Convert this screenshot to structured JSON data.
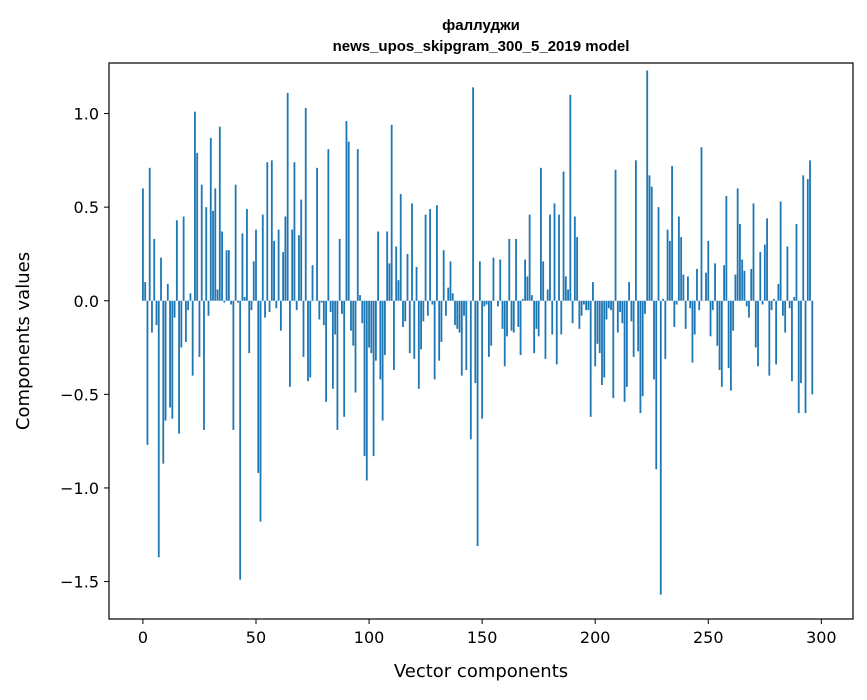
{
  "chart_data": {
    "type": "bar",
    "title": "фаллуджи",
    "subtitle": "news_upos_skipgram_300_5_2019 model",
    "xlabel": "Vector components",
    "ylabel": "Components values",
    "xlim": [
      -15,
      314
    ],
    "ylim": [
      -1.7,
      1.27
    ],
    "xticks": [
      0,
      50,
      100,
      150,
      200,
      250,
      300
    ],
    "xtick_labels": [
      "0",
      "50",
      "100",
      "150",
      "200",
      "250",
      "300"
    ],
    "yticks": [
      1.0,
      0.5,
      0.0,
      -0.5,
      -1.0,
      -1.5
    ],
    "ytick_labels": [
      "1.0",
      "0.5",
      "0.0",
      "−0.5",
      "−1.0",
      "−1.5"
    ],
    "grid": false,
    "bar_color": "#1f77b4",
    "values": [
      0.6,
      0.1,
      -0.77,
      0.71,
      -0.17,
      0.33,
      -0.13,
      -1.37,
      0.23,
      -0.87,
      -0.64,
      0.09,
      -0.57,
      -0.63,
      -0.09,
      0.43,
      -0.71,
      -0.25,
      0.45,
      -0.22,
      -0.05,
      0.04,
      -0.4,
      1.01,
      0.79,
      -0.3,
      0.62,
      -0.69,
      0.5,
      -0.08,
      0.87,
      0.48,
      0.6,
      0.06,
      0.93,
      0.37,
      -0.01,
      0.27,
      0.27,
      -0.02,
      -0.69,
      0.62,
      -0.01,
      -1.49,
      0.36,
      0.02,
      0.49,
      -0.28,
      -0.05,
      0.21,
      0.38,
      -0.92,
      -1.18,
      0.46,
      -0.09,
      0.74,
      -0.06,
      0.75,
      0.32,
      -0.04,
      0.38,
      -0.16,
      0.26,
      0.45,
      1.11,
      -0.46,
      0.38,
      0.74,
      -0.05,
      0.35,
      0.54,
      -0.3,
      1.03,
      -0.43,
      -0.41,
      0.19,
      0.0,
      0.71,
      -0.1,
      -0.01,
      -0.13,
      -0.54,
      0.81,
      -0.06,
      -0.47,
      -0.18,
      -0.69,
      0.33,
      -0.07,
      -0.62,
      0.96,
      0.85,
      -0.16,
      -0.24,
      -0.49,
      0.81,
      0.03,
      -0.12,
      -0.83,
      -0.96,
      -0.25,
      -0.28,
      -0.83,
      -0.32,
      0.37,
      -0.42,
      -0.64,
      -0.29,
      0.37,
      0.2,
      0.94,
      -0.37,
      0.29,
      0.11,
      0.57,
      -0.14,
      -0.11,
      0.25,
      -0.28,
      0.52,
      -0.31,
      0.18,
      -0.47,
      -0.26,
      -0.11,
      0.46,
      -0.08,
      0.49,
      -0.02,
      -0.42,
      0.51,
      -0.32,
      -0.22,
      0.27,
      -0.08,
      0.07,
      0.21,
      0.04,
      -0.13,
      -0.15,
      -0.17,
      -0.4,
      -0.08,
      -0.37,
      0.0,
      -0.74,
      1.14,
      -0.44,
      -1.31,
      0.21,
      -0.63,
      -0.03,
      -0.02,
      -0.3,
      -0.24,
      0.23,
      0.0,
      -0.03,
      0.22,
      -0.15,
      -0.35,
      -0.19,
      0.33,
      -0.16,
      -0.17,
      0.33,
      -0.14,
      -0.29,
      0.01,
      0.22,
      0.13,
      0.46,
      0.03,
      -0.28,
      -0.15,
      -0.19,
      0.71,
      0.21,
      -0.31,
      0.06,
      0.46,
      -0.18,
      0.52,
      -0.34,
      0.46,
      -0.18,
      0.69,
      0.13,
      0.06,
      1.1,
      -0.12,
      0.45,
      0.34,
      -0.15,
      -0.08,
      -0.02,
      -0.05,
      -0.05,
      -0.62,
      0.1,
      -0.35,
      -0.23,
      -0.28,
      -0.45,
      -0.41,
      -0.1,
      -0.04,
      -0.05,
      -0.52,
      0.7,
      -0.17,
      -0.06,
      -0.12,
      -0.54,
      -0.46,
      0.1,
      -0.11,
      -0.3,
      0.75,
      -0.27,
      -0.6,
      -0.51,
      -0.07,
      1.23,
      0.67,
      0.61,
      -0.42,
      -0.9,
      0.5,
      -1.57,
      0.01,
      -0.31,
      0.38,
      0.32,
      0.72,
      -0.14,
      -0.02,
      0.45,
      0.34,
      0.14,
      -0.15,
      0.13,
      -0.04,
      -0.33,
      -0.18,
      0.17,
      -0.05,
      0.82,
      0.0,
      0.15,
      0.32,
      -0.19,
      -0.05,
      0.2,
      -0.24,
      -0.37,
      -0.46,
      0.19,
      0.56,
      -0.36,
      -0.48,
      -0.16,
      0.14,
      0.6,
      0.41,
      0.22,
      0.16,
      -0.03,
      -0.09,
      0.17,
      0.52,
      -0.25,
      -0.35,
      0.26,
      -0.02,
      0.3,
      0.44,
      -0.4,
      -0.05,
      0.01,
      -0.34,
      0.09,
      0.53,
      -0.08,
      -0.17,
      0.29,
      -0.04,
      -0.43,
      0.02,
      0.41,
      -0.6,
      -0.44,
      0.67,
      -0.6,
      0.65,
      0.75,
      -0.5
    ]
  }
}
